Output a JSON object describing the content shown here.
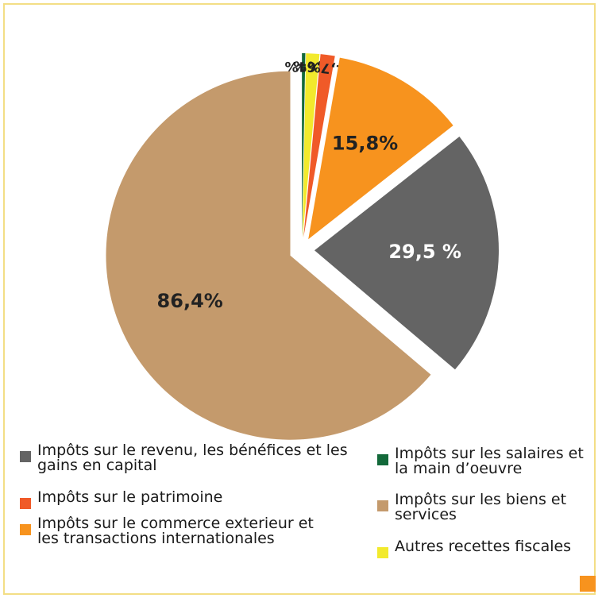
{
  "chart_data": {
    "type": "pie",
    "categories": [
      "Impôts sur les salaires et la main d’oeuvre",
      "Autres recettes fiscales",
      "Impôts sur le patrimoine",
      "Impôts sur le commerce exterieur et les transactions internationales",
      "Impôts sur le revenu, les bénéfices et les gains en capital",
      "Impôts sur les biens et services"
    ],
    "values": [
      0.4,
      1.6,
      1.7,
      15.8,
      29.5,
      86.4
    ],
    "value_labels": [
      "0,4%",
      "1,6%",
      "1,7%",
      "15,8%",
      "29,5 %",
      "86,4%"
    ],
    "colors": [
      "#13693a",
      "#f2ea2d",
      "#f05a28",
      "#f7931e",
      "#646464",
      "#c49a6c"
    ]
  }
}
